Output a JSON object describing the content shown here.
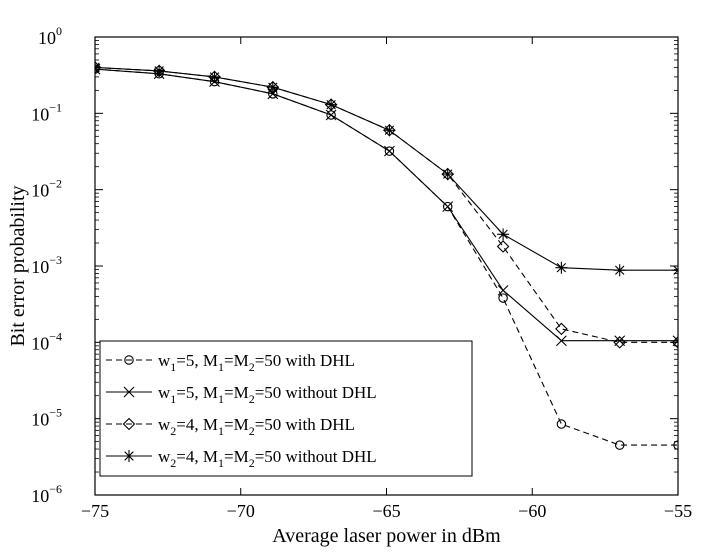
{
  "chart_data": {
    "type": "line",
    "title": "",
    "xlabel": "Average laser power in dBm",
    "ylabel": "Bit error probability",
    "x_ticks": [
      -75,
      -70,
      -65,
      -60,
      -55
    ],
    "x_tick_labels": [
      "−75",
      "−70",
      "−65",
      "−60",
      "−55"
    ],
    "xlim": [
      -75,
      -55
    ],
    "ylim": [
      1e-06,
      1
    ],
    "yscale": "log",
    "y_ticks": [
      {
        "base": "10",
        "exp": "0"
      },
      {
        "base": "10",
        "exp": "−1"
      },
      {
        "base": "10",
        "exp": "−2"
      },
      {
        "base": "10",
        "exp": "−3"
      },
      {
        "base": "10",
        "exp": "−4"
      },
      {
        "base": "10",
        "exp": "−5"
      },
      {
        "base": "10",
        "exp": "−6"
      }
    ],
    "grid": false,
    "legend_position": "bottom-left",
    "series": [
      {
        "legend": {
          "a": "w",
          "a_sub": "1",
          "b": "=5, M",
          "b_sub": "1",
          "c": "=M",
          "c_sub": "2",
          "d": "=50 with DHL"
        },
        "line_style": "dashed",
        "marker": "circle",
        "x": [
          -75,
          -72.8,
          -70.9,
          -68.9,
          -66.9,
          -64.9,
          -62.9,
          -61,
          -59,
          -57,
          -55
        ],
        "y": [
          0.38,
          0.33,
          0.26,
          0.18,
          0.095,
          0.032,
          0.006,
          0.00038,
          8.5e-06,
          4.5e-06,
          4.5e-06
        ]
      },
      {
        "legend": {
          "a": "w",
          "a_sub": "1",
          "b": "=5, M",
          "b_sub": "1",
          "c": "=M",
          "c_sub": "2",
          "d": "=50 without DHL"
        },
        "line_style": "solid",
        "marker": "x",
        "x": [
          -75,
          -72.8,
          -70.9,
          -68.9,
          -66.9,
          -64.9,
          -62.9,
          -61,
          -59,
          -57,
          -55
        ],
        "y": [
          0.38,
          0.33,
          0.26,
          0.18,
          0.095,
          0.032,
          0.006,
          0.00048,
          0.000105,
          0.000105,
          0.000105
        ]
      },
      {
        "legend": {
          "a": "w",
          "a_sub": "2",
          "b": "=4, M",
          "b_sub": "1",
          "c": "=M",
          "c_sub": "2",
          "d": "=50 with DHL"
        },
        "line_style": "dashed",
        "marker": "diamond",
        "x": [
          -75,
          -72.8,
          -70.9,
          -68.9,
          -66.9,
          -64.9,
          -62.9,
          -61,
          -59,
          -57,
          -55
        ],
        "y": [
          0.4,
          0.36,
          0.3,
          0.22,
          0.13,
          0.06,
          0.016,
          0.0018,
          0.00015,
          0.0001,
          0.0001
        ]
      },
      {
        "legend": {
          "a": "w",
          "a_sub": "2",
          "b": "=4, M",
          "b_sub": "1",
          "c": "=M",
          "c_sub": "2",
          "d": "=50 without DHL"
        },
        "line_style": "solid",
        "marker": "asterisk",
        "x": [
          -75,
          -72.8,
          -70.9,
          -68.9,
          -66.9,
          -64.9,
          -62.9,
          -61,
          -59,
          -57,
          -55
        ],
        "y": [
          0.4,
          0.36,
          0.3,
          0.22,
          0.13,
          0.06,
          0.016,
          0.0026,
          0.00095,
          0.00088,
          0.00088
        ]
      }
    ]
  }
}
